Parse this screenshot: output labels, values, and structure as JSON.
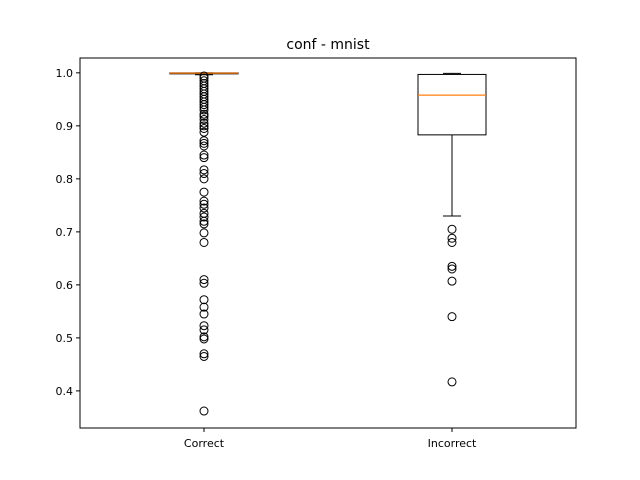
{
  "chart_data": {
    "type": "box",
    "title": "conf - mnist",
    "xlabel": "",
    "ylabel": "",
    "ylim": [
      0.33,
      1.028
    ],
    "yticks": [
      0.4,
      0.5,
      0.6,
      0.7,
      0.8,
      0.9,
      1.0
    ],
    "ytick_labels": [
      "0.4",
      "0.5",
      "0.6",
      "0.7",
      "0.8",
      "0.9",
      "1.0"
    ],
    "grid": false,
    "boxes": [
      {
        "category": "Correct",
        "whisker_low": 0.9965,
        "q1": 0.9985,
        "median": 0.9995,
        "q3": 1.0,
        "whisker_high": 1.0,
        "outliers": [
          0.362,
          0.465,
          0.47,
          0.498,
          0.502,
          0.515,
          0.523,
          0.545,
          0.558,
          0.572,
          0.603,
          0.61,
          0.68,
          0.698,
          0.715,
          0.72,
          0.728,
          0.735,
          0.745,
          0.752,
          0.758,
          0.775,
          0.8,
          0.81,
          0.817,
          0.84,
          0.845,
          0.862,
          0.867,
          0.872,
          0.888,
          0.895,
          0.9,
          0.905,
          0.912,
          0.918,
          0.922,
          0.93,
          0.935,
          0.94,
          0.945,
          0.95,
          0.955,
          0.96,
          0.965,
          0.97,
          0.975,
          0.98,
          0.985,
          0.99,
          0.994
        ]
      },
      {
        "category": "Incorrect",
        "whisker_low": 0.73,
        "q1": 0.883,
        "median": 0.958,
        "q3": 0.997,
        "whisker_high": 0.999,
        "outliers": [
          0.705,
          0.688,
          0.68,
          0.635,
          0.63,
          0.607,
          0.54,
          0.417
        ]
      }
    ],
    "colors": {
      "median": "#ff7f0e",
      "box": "#000000",
      "flier": "#000000"
    }
  }
}
